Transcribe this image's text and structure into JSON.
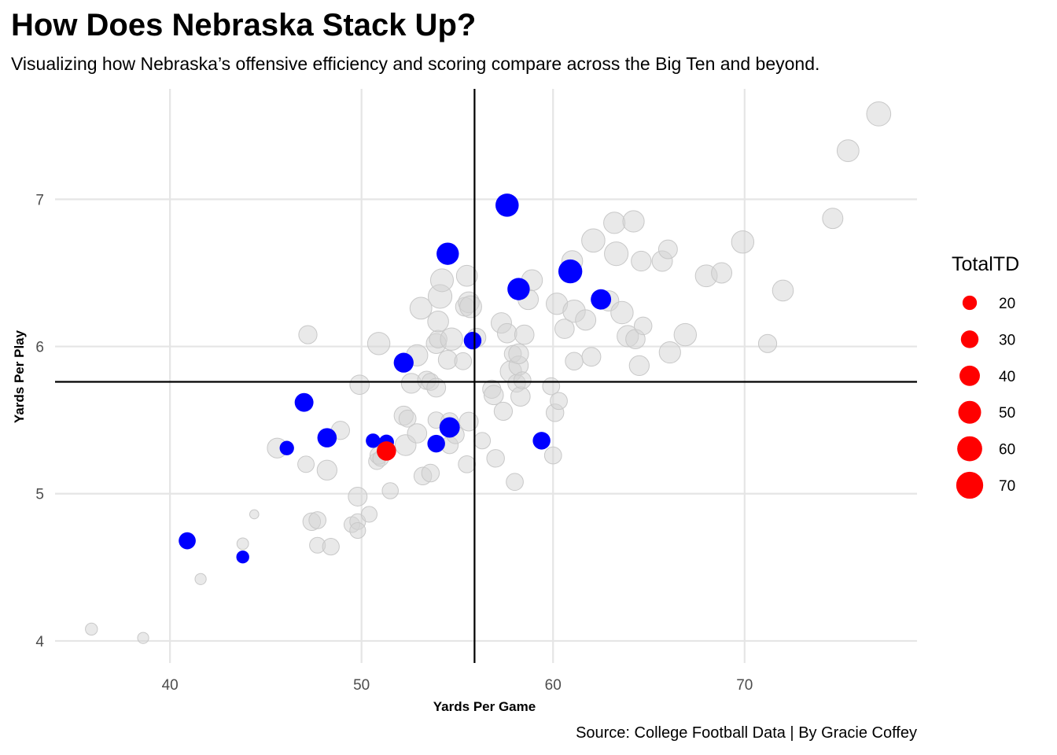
{
  "chart_data": {
    "type": "scatter",
    "title": "How Does Nebraska Stack Up?",
    "subtitle": "Visualizing how Nebraska’s offensive efficiency and scoring compare across the Big Ten and beyond.",
    "caption": "Source: College Football Data | By Gracie Coffey",
    "xlabel": "Yards Per Game",
    "ylabel": "Yards Per Play",
    "xlim": [
      34,
      79
    ],
    "ylim": [
      3.85,
      7.75
    ],
    "x_ticks": [
      40,
      50,
      60,
      70
    ],
    "y_ticks": [
      4,
      5,
      6,
      7
    ],
    "grid": true,
    "reference_lines": {
      "vertical_x": 55.9,
      "horizontal_y": 5.76
    },
    "size_variable": "TotalTD",
    "legend": {
      "title": "TotalTD",
      "position": "right",
      "entries": [
        20,
        30,
        40,
        50,
        60,
        70
      ]
    },
    "colors": {
      "other": "#d4d4d4",
      "big_ten": "#0000ff",
      "nebraska": "#ff0000"
    },
    "series": [
      {
        "group": "other",
        "points": [
          {
            "x": 35.9,
            "y": 4.08,
            "td": 14
          },
          {
            "x": 38.6,
            "y": 4.02,
            "td": 12
          },
          {
            "x": 41.6,
            "y": 4.42,
            "td": 12
          },
          {
            "x": 43.8,
            "y": 4.66,
            "td": 13
          },
          {
            "x": 44.4,
            "y": 4.86,
            "td": 8
          },
          {
            "x": 45.6,
            "y": 5.31,
            "td": 38
          },
          {
            "x": 47.1,
            "y": 5.2,
            "td": 26
          },
          {
            "x": 47.2,
            "y": 6.08,
            "td": 32
          },
          {
            "x": 47.4,
            "y": 4.81,
            "td": 30
          },
          {
            "x": 47.7,
            "y": 4.82,
            "td": 28
          },
          {
            "x": 47.7,
            "y": 4.65,
            "td": 24
          },
          {
            "x": 48.2,
            "y": 5.16,
            "td": 38
          },
          {
            "x": 48.4,
            "y": 4.64,
            "td": 27
          },
          {
            "x": 48.9,
            "y": 5.43,
            "td": 32
          },
          {
            "x": 49.5,
            "y": 4.79,
            "td": 24
          },
          {
            "x": 49.8,
            "y": 4.81,
            "td": 24
          },
          {
            "x": 49.8,
            "y": 4.75,
            "td": 24
          },
          {
            "x": 49.8,
            "y": 4.98,
            "td": 34
          },
          {
            "x": 49.9,
            "y": 5.74,
            "td": 36
          },
          {
            "x": 50.4,
            "y": 4.86,
            "td": 24
          },
          {
            "x": 50.8,
            "y": 5.22,
            "td": 26
          },
          {
            "x": 50.9,
            "y": 6.02,
            "td": 48
          },
          {
            "x": 50.9,
            "y": 5.26,
            "td": 30
          },
          {
            "x": 51.0,
            "y": 5.24,
            "td": 24
          },
          {
            "x": 51.5,
            "y": 5.02,
            "td": 25
          },
          {
            "x": 52.2,
            "y": 5.53,
            "td": 35
          },
          {
            "x": 52.3,
            "y": 5.33,
            "td": 42
          },
          {
            "x": 52.4,
            "y": 5.51,
            "td": 28
          },
          {
            "x": 52.6,
            "y": 5.75,
            "td": 38
          },
          {
            "x": 52.9,
            "y": 5.41,
            "td": 36
          },
          {
            "x": 52.9,
            "y": 5.94,
            "td": 44
          },
          {
            "x": 53.1,
            "y": 6.26,
            "td": 46
          },
          {
            "x": 53.2,
            "y": 5.12,
            "td": 30
          },
          {
            "x": 53.4,
            "y": 5.77,
            "td": 32
          },
          {
            "x": 53.6,
            "y": 5.14,
            "td": 30
          },
          {
            "x": 53.6,
            "y": 5.76,
            "td": 28
          },
          {
            "x": 53.9,
            "y": 5.5,
            "td": 26
          },
          {
            "x": 53.9,
            "y": 5.72,
            "td": 34
          },
          {
            "x": 53.9,
            "y": 6.02,
            "td": 38
          },
          {
            "x": 54.0,
            "y": 6.05,
            "td": 30
          },
          {
            "x": 54.0,
            "y": 6.17,
            "td": 42
          },
          {
            "x": 54.1,
            "y": 6.34,
            "td": 54
          },
          {
            "x": 54.2,
            "y": 6.45,
            "td": 50
          },
          {
            "x": 54.5,
            "y": 5.91,
            "td": 34
          },
          {
            "x": 54.6,
            "y": 5.49,
            "td": 30
          },
          {
            "x": 54.6,
            "y": 5.33,
            "td": 28
          },
          {
            "x": 54.7,
            "y": 6.05,
            "td": 48
          },
          {
            "x": 54.9,
            "y": 5.4,
            "td": 30
          },
          {
            "x": 55.3,
            "y": 5.9,
            "td": 28
          },
          {
            "x": 55.4,
            "y": 6.27,
            "td": 34
          },
          {
            "x": 55.5,
            "y": 5.2,
            "td": 28
          },
          {
            "x": 55.5,
            "y": 6.48,
            "td": 42
          },
          {
            "x": 55.6,
            "y": 6.3,
            "td": 42
          },
          {
            "x": 55.6,
            "y": 5.49,
            "td": 34
          },
          {
            "x": 55.7,
            "y": 6.27,
            "td": 46
          },
          {
            "x": 56.0,
            "y": 6.06,
            "td": 34
          },
          {
            "x": 56.3,
            "y": 5.36,
            "td": 26
          },
          {
            "x": 56.8,
            "y": 5.71,
            "td": 32
          },
          {
            "x": 56.9,
            "y": 5.67,
            "td": 36
          },
          {
            "x": 57.0,
            "y": 5.24,
            "td": 30
          },
          {
            "x": 57.3,
            "y": 6.16,
            "td": 40
          },
          {
            "x": 57.4,
            "y": 5.56,
            "td": 32
          },
          {
            "x": 57.6,
            "y": 6.09,
            "td": 36
          },
          {
            "x": 57.8,
            "y": 5.83,
            "td": 44
          },
          {
            "x": 57.9,
            "y": 5.95,
            "td": 28
          },
          {
            "x": 58.0,
            "y": 5.08,
            "td": 28
          },
          {
            "x": 58.1,
            "y": 5.75,
            "td": 30
          },
          {
            "x": 58.2,
            "y": 5.87,
            "td": 36
          },
          {
            "x": 58.2,
            "y": 5.95,
            "td": 38
          },
          {
            "x": 58.3,
            "y": 5.66,
            "td": 36
          },
          {
            "x": 58.4,
            "y": 5.77,
            "td": 28
          },
          {
            "x": 58.5,
            "y": 6.08,
            "td": 36
          },
          {
            "x": 58.7,
            "y": 6.32,
            "td": 40
          },
          {
            "x": 58.9,
            "y": 6.45,
            "td": 42
          },
          {
            "x": 59.9,
            "y": 5.73,
            "td": 28
          },
          {
            "x": 60.0,
            "y": 5.26,
            "td": 28
          },
          {
            "x": 60.1,
            "y": 5.55,
            "td": 30
          },
          {
            "x": 60.2,
            "y": 6.29,
            "td": 44
          },
          {
            "x": 60.3,
            "y": 5.63,
            "td": 28
          },
          {
            "x": 60.6,
            "y": 6.12,
            "td": 36
          },
          {
            "x": 61.0,
            "y": 6.58,
            "td": 42
          },
          {
            "x": 61.1,
            "y": 6.24,
            "td": 48
          },
          {
            "x": 61.1,
            "y": 5.9,
            "td": 30
          },
          {
            "x": 61.7,
            "y": 6.18,
            "td": 40
          },
          {
            "x": 62.0,
            "y": 5.93,
            "td": 34
          },
          {
            "x": 62.1,
            "y": 6.72,
            "td": 52
          },
          {
            "x": 62.9,
            "y": 6.31,
            "td": 40
          },
          {
            "x": 63.2,
            "y": 6.84,
            "td": 44
          },
          {
            "x": 63.3,
            "y": 6.63,
            "td": 54
          },
          {
            "x": 63.6,
            "y": 6.23,
            "td": 48
          },
          {
            "x": 63.9,
            "y": 6.07,
            "td": 44
          },
          {
            "x": 64.2,
            "y": 6.85,
            "td": 44
          },
          {
            "x": 64.3,
            "y": 6.05,
            "td": 36
          },
          {
            "x": 64.5,
            "y": 5.87,
            "td": 38
          },
          {
            "x": 64.6,
            "y": 6.58,
            "td": 38
          },
          {
            "x": 64.7,
            "y": 6.14,
            "td": 30
          },
          {
            "x": 65.7,
            "y": 6.58,
            "td": 40
          },
          {
            "x": 66.0,
            "y": 6.66,
            "td": 34
          },
          {
            "x": 66.1,
            "y": 5.96,
            "td": 44
          },
          {
            "x": 66.9,
            "y": 6.08,
            "td": 48
          },
          {
            "x": 68.0,
            "y": 6.48,
            "td": 46
          },
          {
            "x": 68.8,
            "y": 6.5,
            "td": 40
          },
          {
            "x": 69.9,
            "y": 6.71,
            "td": 48
          },
          {
            "x": 71.2,
            "y": 6.02,
            "td": 32
          },
          {
            "x": 72.0,
            "y": 6.38,
            "td": 42
          },
          {
            "x": 74.6,
            "y": 6.87,
            "td": 40
          },
          {
            "x": 75.4,
            "y": 7.33,
            "td": 46
          },
          {
            "x": 77.0,
            "y": 7.58,
            "td": 56
          }
        ]
      },
      {
        "group": "big_ten",
        "points": [
          {
            "x": 40.9,
            "y": 4.68,
            "td": 28
          },
          {
            "x": 43.8,
            "y": 4.57,
            "td": 16
          },
          {
            "x": 46.1,
            "y": 5.31,
            "td": 20
          },
          {
            "x": 47.0,
            "y": 5.62,
            "td": 34
          },
          {
            "x": 48.2,
            "y": 5.38,
            "td": 36
          },
          {
            "x": 50.6,
            "y": 5.36,
            "td": 20
          },
          {
            "x": 51.3,
            "y": 5.35,
            "td": 22
          },
          {
            "x": 52.2,
            "y": 5.89,
            "td": 38
          },
          {
            "x": 53.9,
            "y": 5.34,
            "td": 30
          },
          {
            "x": 54.5,
            "y": 6.63,
            "td": 48
          },
          {
            "x": 54.6,
            "y": 5.45,
            "td": 40
          },
          {
            "x": 55.8,
            "y": 6.04,
            "td": 30
          },
          {
            "x": 57.6,
            "y": 6.96,
            "td": 52
          },
          {
            "x": 58.2,
            "y": 6.39,
            "td": 48
          },
          {
            "x": 59.4,
            "y": 5.36,
            "td": 30
          },
          {
            "x": 60.9,
            "y": 6.51,
            "td": 55
          },
          {
            "x": 62.5,
            "y": 6.32,
            "td": 40
          }
        ]
      },
      {
        "group": "nebraska",
        "points": [
          {
            "x": 51.3,
            "y": 5.29,
            "td": 36
          }
        ]
      }
    ]
  }
}
